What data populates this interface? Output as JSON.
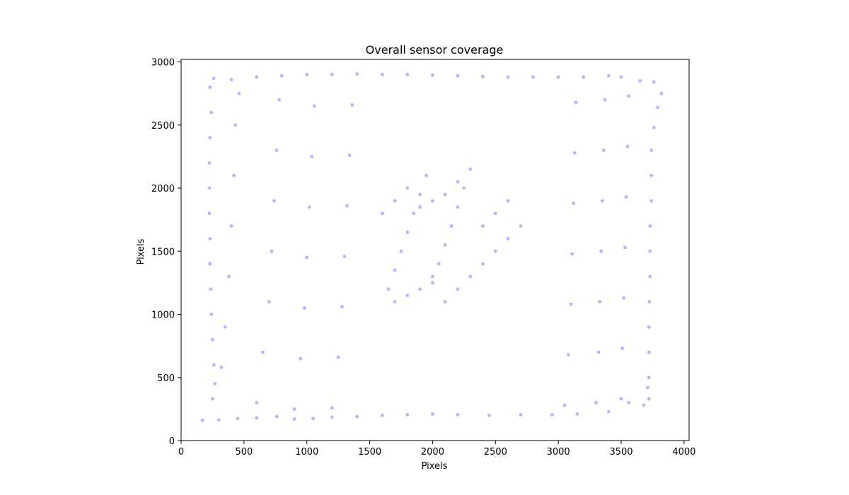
{
  "chart_data": {
    "type": "scatter",
    "title": "Overall sensor coverage",
    "xlabel": "Pixels",
    "ylabel": "Pixels",
    "xlim": [
      0,
      4040
    ],
    "ylim": [
      0,
      3020
    ],
    "xticks": [
      0,
      500,
      1000,
      1500,
      2000,
      2500,
      3000,
      3500,
      4000
    ],
    "yticks": [
      0,
      500,
      1000,
      1500,
      2000,
      2500,
      3000
    ],
    "grid": false,
    "point_color": "#0000ff",
    "point_opacity": 0.28,
    "series": [
      {
        "points": [
          [
            170,
            160
          ],
          [
            300,
            165
          ],
          [
            450,
            175
          ],
          [
            600,
            180
          ],
          [
            760,
            190
          ],
          [
            900,
            170
          ],
          [
            1050,
            175
          ],
          [
            1200,
            185
          ],
          [
            1400,
            190
          ],
          [
            1600,
            200
          ],
          [
            1800,
            205
          ],
          [
            2000,
            210
          ],
          [
            2200,
            205
          ],
          [
            2450,
            200
          ],
          [
            2700,
            205
          ],
          [
            2950,
            205
          ],
          [
            3150,
            210
          ],
          [
            3400,
            230
          ],
          [
            3560,
            300
          ],
          [
            3680,
            280
          ],
          [
            3720,
            330
          ],
          [
            230,
            2800
          ],
          [
            260,
            2870
          ],
          [
            400,
            2860
          ],
          [
            600,
            2880
          ],
          [
            800,
            2890
          ],
          [
            1000,
            2900
          ],
          [
            1200,
            2900
          ],
          [
            1400,
            2905
          ],
          [
            1600,
            2900
          ],
          [
            1800,
            2900
          ],
          [
            2000,
            2895
          ],
          [
            2200,
            2890
          ],
          [
            2400,
            2885
          ],
          [
            2600,
            2880
          ],
          [
            2800,
            2880
          ],
          [
            3000,
            2880
          ],
          [
            3200,
            2880
          ],
          [
            3400,
            2890
          ],
          [
            3500,
            2880
          ],
          [
            3650,
            2850
          ],
          [
            3760,
            2840
          ],
          [
            3820,
            2750
          ],
          [
            3790,
            2640
          ],
          [
            3760,
            2480
          ],
          [
            3740,
            2300
          ],
          [
            3740,
            2100
          ],
          [
            3740,
            1900
          ],
          [
            3730,
            1700
          ],
          [
            3730,
            1500
          ],
          [
            3730,
            1300
          ],
          [
            3725,
            1100
          ],
          [
            3720,
            900
          ],
          [
            3720,
            700
          ],
          [
            3720,
            500
          ],
          [
            3710,
            420
          ],
          [
            240,
            2600
          ],
          [
            230,
            2400
          ],
          [
            225,
            2200
          ],
          [
            225,
            2000
          ],
          [
            225,
            1800
          ],
          [
            230,
            1600
          ],
          [
            230,
            1400
          ],
          [
            235,
            1200
          ],
          [
            240,
            1000
          ],
          [
            250,
            800
          ],
          [
            260,
            600
          ],
          [
            270,
            450
          ],
          [
            250,
            330
          ],
          [
            320,
            580
          ],
          [
            350,
            900
          ],
          [
            380,
            1300
          ],
          [
            400,
            1700
          ],
          [
            420,
            2100
          ],
          [
            430,
            2500
          ],
          [
            460,
            2750
          ],
          [
            600,
            300
          ],
          [
            650,
            700
          ],
          [
            700,
            1100
          ],
          [
            720,
            1500
          ],
          [
            740,
            1900
          ],
          [
            760,
            2300
          ],
          [
            780,
            2700
          ],
          [
            900,
            250
          ],
          [
            950,
            650
          ],
          [
            980,
            1050
          ],
          [
            1000,
            1450
          ],
          [
            1020,
            1850
          ],
          [
            1040,
            2250
          ],
          [
            1060,
            2650
          ],
          [
            1200,
            260
          ],
          [
            1250,
            660
          ],
          [
            1280,
            1060
          ],
          [
            1300,
            1460
          ],
          [
            1320,
            1860
          ],
          [
            1340,
            2260
          ],
          [
            1360,
            2660
          ],
          [
            3050,
            280
          ],
          [
            3080,
            680
          ],
          [
            3100,
            1080
          ],
          [
            3110,
            1480
          ],
          [
            3120,
            1880
          ],
          [
            3130,
            2280
          ],
          [
            3140,
            2680
          ],
          [
            3300,
            300
          ],
          [
            3320,
            700
          ],
          [
            3330,
            1100
          ],
          [
            3340,
            1500
          ],
          [
            3350,
            1900
          ],
          [
            3360,
            2300
          ],
          [
            3370,
            2700
          ],
          [
            3500,
            330
          ],
          [
            3510,
            730
          ],
          [
            3520,
            1130
          ],
          [
            3530,
            1530
          ],
          [
            3540,
            1930
          ],
          [
            3550,
            2330
          ],
          [
            3560,
            2730
          ],
          [
            1650,
            1200
          ],
          [
            1700,
            1350
          ],
          [
            1750,
            1500
          ],
          [
            1800,
            1650
          ],
          [
            1850,
            1800
          ],
          [
            1900,
            1950
          ],
          [
            1950,
            2100
          ],
          [
            2000,
            1250
          ],
          [
            2050,
            1400
          ],
          [
            2100,
            1550
          ],
          [
            2150,
            1700
          ],
          [
            2200,
            1850
          ],
          [
            2250,
            2000
          ],
          [
            2300,
            2150
          ],
          [
            1600,
            1800
          ],
          [
            1700,
            1900
          ],
          [
            1800,
            2000
          ],
          [
            1900,
            1850
          ],
          [
            2000,
            1900
          ],
          [
            2100,
            1950
          ],
          [
            2200,
            2050
          ],
          [
            1700,
            1100
          ],
          [
            1800,
            1150
          ],
          [
            1900,
            1200
          ],
          [
            2000,
            1300
          ],
          [
            2100,
            1100
          ],
          [
            2200,
            1200
          ],
          [
            2300,
            1300
          ],
          [
            2400,
            1400
          ],
          [
            2500,
            1500
          ],
          [
            2400,
            1700
          ],
          [
            2500,
            1800
          ],
          [
            2600,
            1900
          ],
          [
            2600,
            1600
          ],
          [
            2700,
            1700
          ]
        ]
      }
    ]
  }
}
